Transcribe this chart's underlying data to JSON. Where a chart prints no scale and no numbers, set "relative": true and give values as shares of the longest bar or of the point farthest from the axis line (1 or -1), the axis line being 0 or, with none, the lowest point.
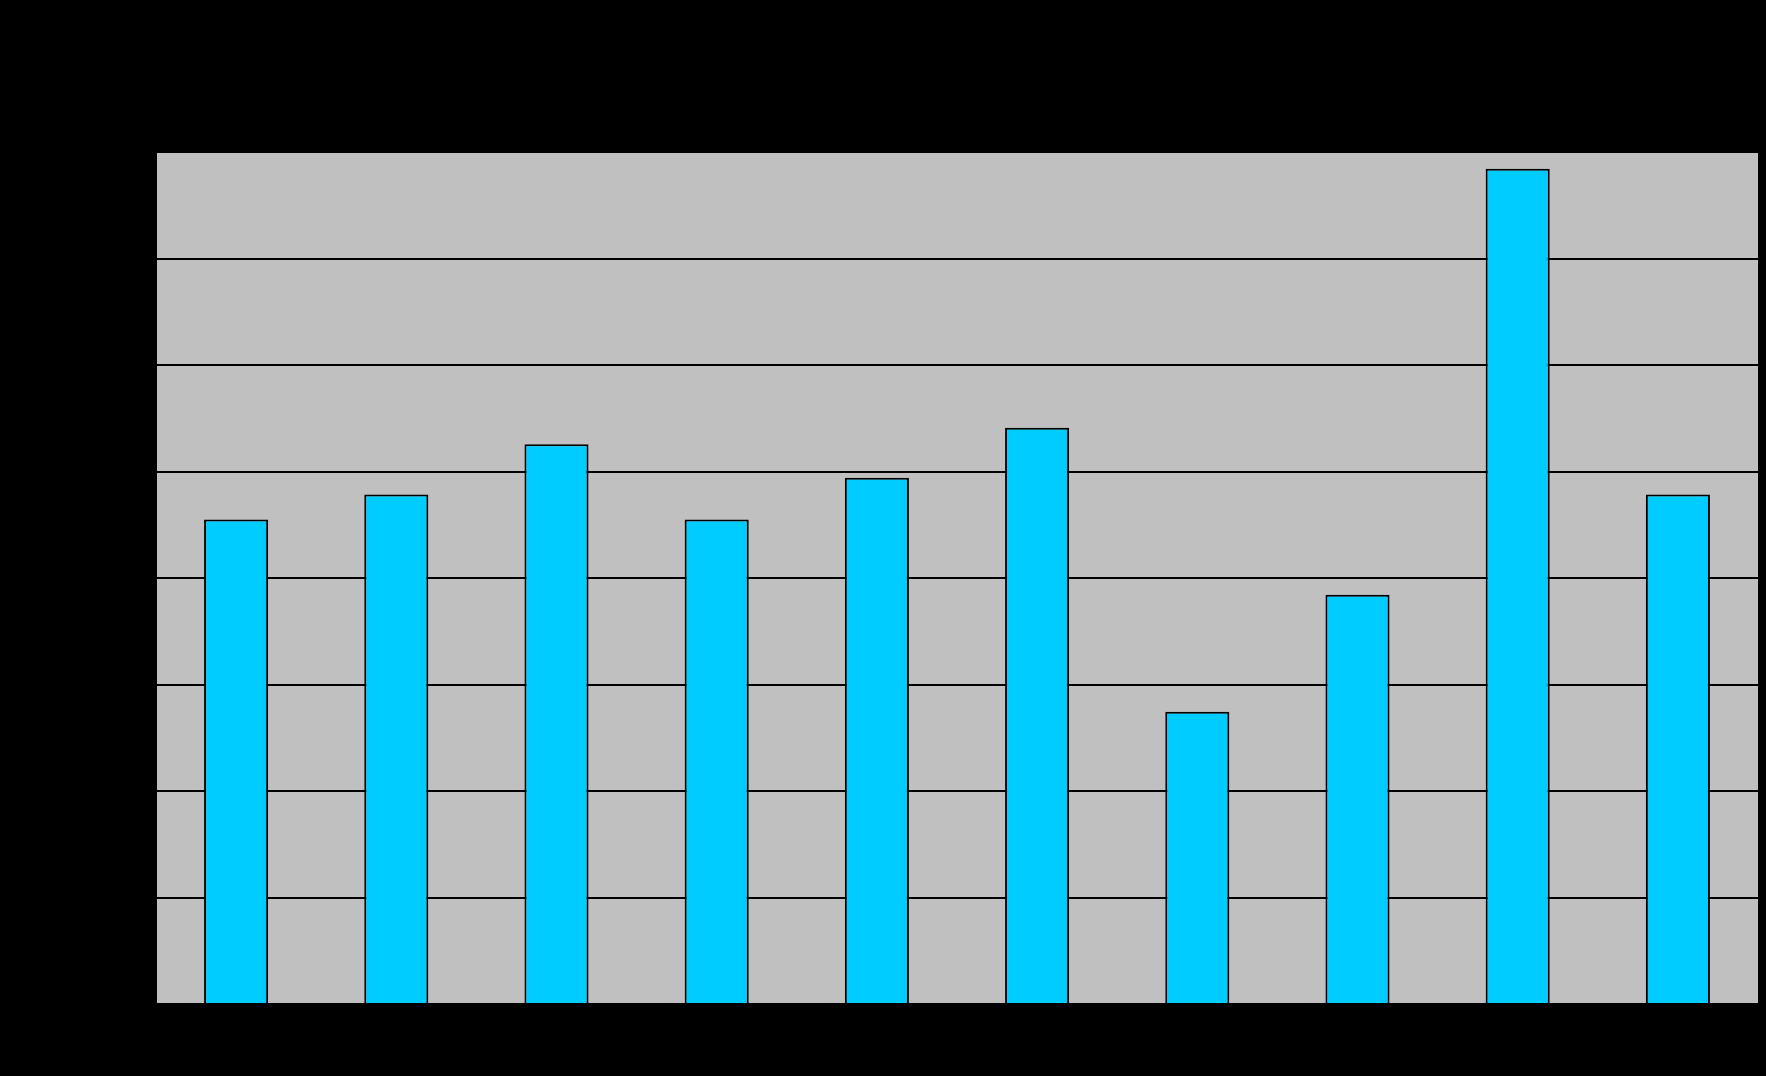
{
  "chart_data": {
    "type": "bar",
    "relative": true,
    "grid": true,
    "categories": [
      null,
      null,
      null,
      null,
      null,
      null,
      null,
      null,
      null,
      null
    ],
    "values": [
      0.58,
      0.61,
      0.67,
      0.58,
      0.63,
      0.69,
      0.35,
      0.49,
      1,
      0.61
    ],
    "color": "#00ccff"
  }
}
